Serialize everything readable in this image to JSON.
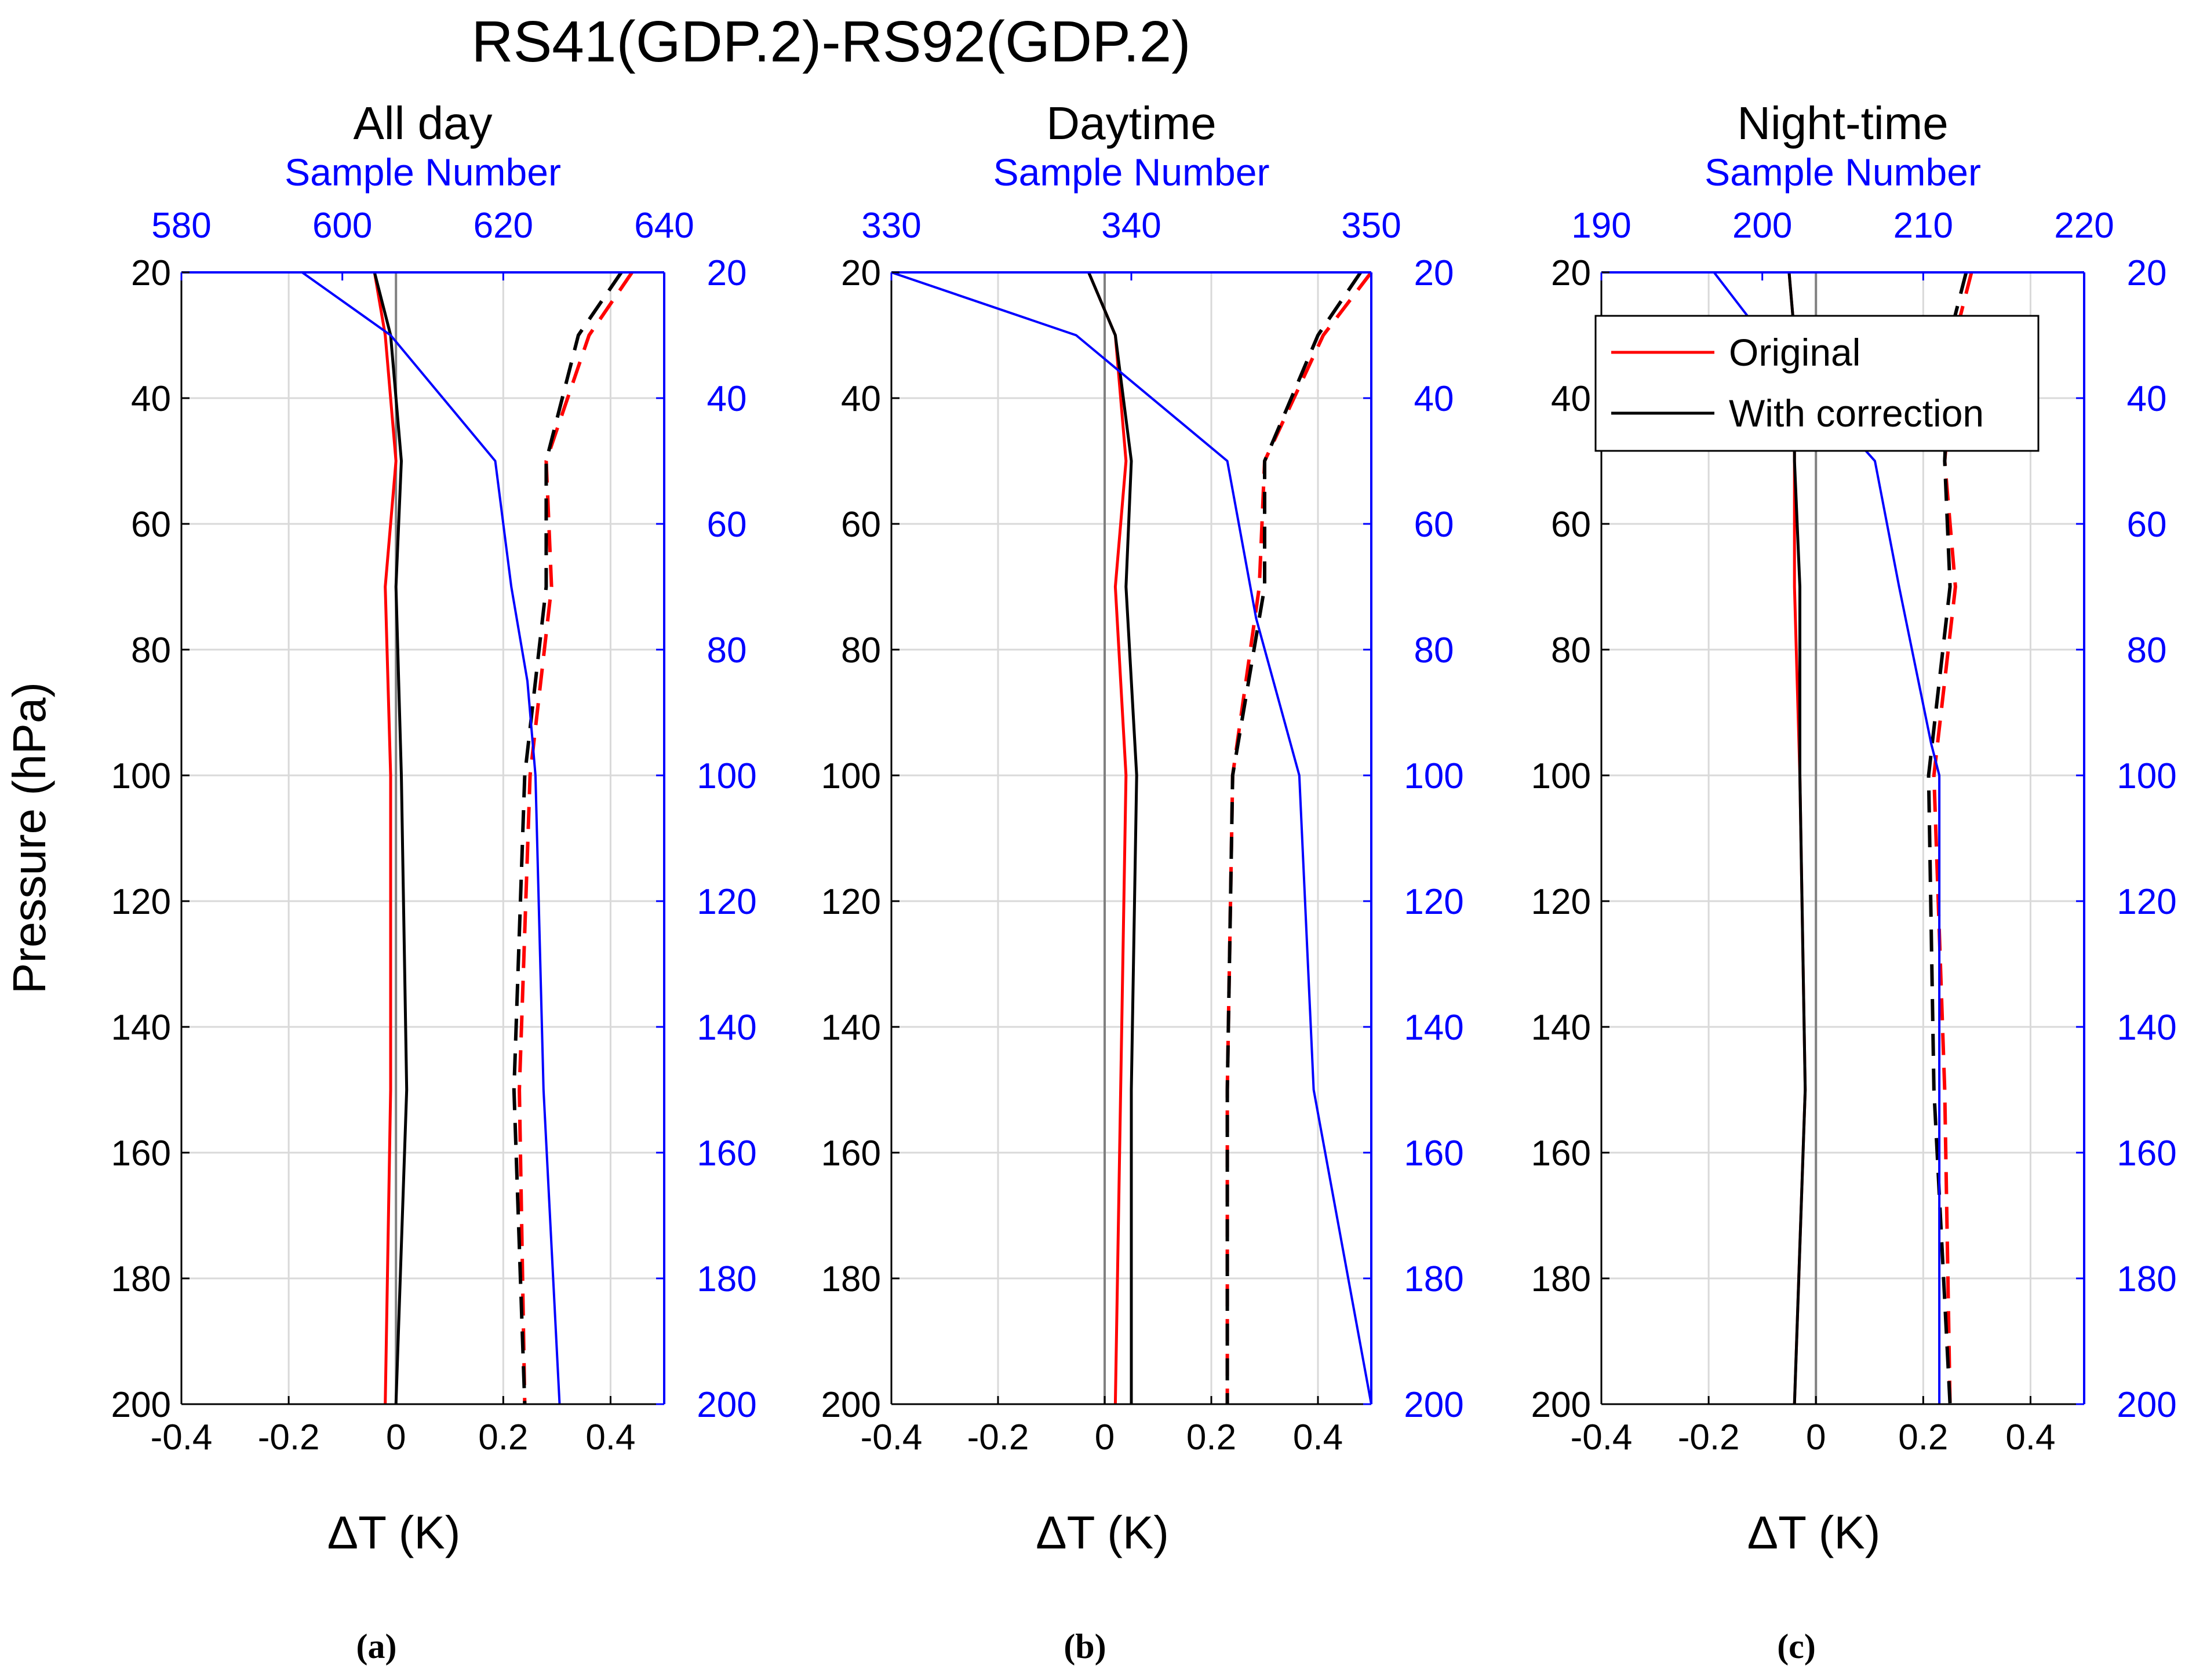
{
  "figure": {
    "title": "RS41(GDP.2)-RS92(GDP.2)",
    "colors": {
      "original": "#ff0000",
      "corrected": "#000000",
      "samples": "#0000ff",
      "grid": "#d9d9d9",
      "zero": "#808080"
    }
  },
  "legend": {
    "panel": "c",
    "entries": [
      {
        "label": "Original",
        "color": "#ff0000"
      },
      {
        "label": "With correction",
        "color": "#000000"
      }
    ]
  },
  "chart_data": [
    {
      "type": "line",
      "panel": "a",
      "title": "All day",
      "caption": "(a)",
      "xlabel": "ΔT (K)",
      "ylabel": "Pressure (hPa)",
      "top_xlabel": "Sample Number",
      "right_ylabel": "",
      "xlim": [
        -0.4,
        0.5
      ],
      "xticks": [
        -0.4,
        -0.2,
        0,
        0.2,
        0.4
      ],
      "xtick_labels": [
        "-0.4",
        "-0.2",
        "0",
        "0.2",
        "0.4"
      ],
      "ylim": [
        20,
        200
      ],
      "y_reversed": true,
      "yticks": [
        20,
        40,
        60,
        80,
        100,
        120,
        140,
        160,
        180,
        200
      ],
      "ytick_labels": [
        "20",
        "40",
        "60",
        "80",
        "100",
        "120",
        "140",
        "160",
        "180",
        "200"
      ],
      "top_xlim": [
        580,
        640
      ],
      "top_xticks": [
        580,
        600,
        620,
        640
      ],
      "top_xtick_labels": [
        "580",
        "600",
        "620",
        "640"
      ],
      "grid": true,
      "pressure": [
        20,
        30,
        50,
        70,
        100,
        150,
        200
      ],
      "series": [
        {
          "name": "Original",
          "style": "solid",
          "color": "#ff0000",
          "values": [
            -0.04,
            -0.02,
            0.0,
            -0.02,
            -0.01,
            -0.01,
            -0.02
          ]
        },
        {
          "name": "With correction",
          "style": "solid",
          "color": "#000000",
          "values": [
            -0.04,
            -0.01,
            0.01,
            0.0,
            0.01,
            0.02,
            0.0
          ]
        },
        {
          "name": "Original (dashed)",
          "style": "dashed",
          "color": "#ff0000",
          "values": [
            0.44,
            0.36,
            0.28,
            0.29,
            0.25,
            0.23,
            0.24
          ]
        },
        {
          "name": "With correction (dashed)",
          "style": "dashed",
          "color": "#000000",
          "values": [
            0.42,
            0.34,
            0.28,
            0.28,
            0.24,
            0.22,
            0.24
          ]
        }
      ],
      "sample_series": {
        "name": "Sample Number",
        "color": "#0000ff",
        "pressure": [
          20,
          30,
          50,
          70,
          85,
          100,
          150,
          200
        ],
        "values": [
          595,
          606,
          619,
          621,
          623,
          624,
          625,
          627
        ]
      }
    },
    {
      "type": "line",
      "panel": "b",
      "title": "Daytime",
      "caption": "(b)",
      "xlabel": "ΔT (K)",
      "ylabel": "",
      "top_xlabel": "Sample Number",
      "right_ylabel": "",
      "xlim": [
        -0.4,
        0.5
      ],
      "xticks": [
        -0.4,
        -0.2,
        0,
        0.2,
        0.4
      ],
      "xtick_labels": [
        "-0.4",
        "-0.2",
        "0",
        "0.2",
        "0.4"
      ],
      "ylim": [
        20,
        200
      ],
      "y_reversed": true,
      "yticks": [
        20,
        40,
        60,
        80,
        100,
        120,
        140,
        160,
        180,
        200
      ],
      "ytick_labels": [
        "20",
        "40",
        "60",
        "80",
        "100",
        "120",
        "140",
        "160",
        "180",
        "200"
      ],
      "top_xlim": [
        330,
        350
      ],
      "top_xticks": [
        330,
        340,
        350
      ],
      "top_xtick_labels": [
        "330",
        "340",
        "350"
      ],
      "grid": true,
      "pressure": [
        20,
        30,
        50,
        70,
        100,
        150,
        200
      ],
      "series": [
        {
          "name": "Original",
          "style": "solid",
          "color": "#ff0000",
          "values": [
            -0.03,
            0.02,
            0.04,
            0.02,
            0.04,
            0.03,
            0.02
          ]
        },
        {
          "name": "With correction",
          "style": "solid",
          "color": "#000000",
          "values": [
            -0.03,
            0.02,
            0.05,
            0.04,
            0.06,
            0.05,
            0.05
          ]
        },
        {
          "name": "Original (dashed)",
          "style": "dashed",
          "color": "#ff0000",
          "values": [
            0.5,
            0.41,
            0.3,
            0.29,
            0.24,
            0.23,
            0.23
          ]
        },
        {
          "name": "With correction (dashed)",
          "style": "dashed",
          "color": "#000000",
          "values": [
            0.48,
            0.4,
            0.3,
            0.3,
            0.24,
            0.23,
            0.23
          ]
        }
      ],
      "sample_series": {
        "name": "Sample Number",
        "color": "#0000ff",
        "pressure": [
          20,
          30,
          50,
          75,
          100,
          150,
          200
        ],
        "values": [
          330,
          337.7,
          344,
          345.2,
          347,
          347.6,
          350
        ]
      }
    },
    {
      "type": "line",
      "panel": "c",
      "title": "Night-time",
      "caption": "(c)",
      "xlabel": "ΔT (K)",
      "ylabel": "",
      "top_xlabel": "Sample Number",
      "right_ylabel": "",
      "xlim": [
        -0.4,
        0.5
      ],
      "xticks": [
        -0.4,
        -0.2,
        0,
        0.2,
        0.4
      ],
      "xtick_labels": [
        "-0.4",
        "-0.2",
        "0",
        "0.2",
        "0.4"
      ],
      "ylim": [
        20,
        200
      ],
      "y_reversed": true,
      "yticks": [
        20,
        40,
        60,
        80,
        100,
        120,
        140,
        160,
        180,
        200
      ],
      "ytick_labels": [
        "20",
        "40",
        "60",
        "80",
        "100",
        "120",
        "140",
        "160",
        "180",
        "200"
      ],
      "top_xlim": [
        190,
        220
      ],
      "top_xticks": [
        190,
        200,
        210,
        220
      ],
      "top_xtick_labels": [
        "190",
        "200",
        "210",
        "220"
      ],
      "grid": true,
      "pressure": [
        20,
        30,
        50,
        70,
        100,
        150,
        200
      ],
      "series": [
        {
          "name": "Original",
          "style": "solid",
          "color": "#ff0000",
          "values": [
            -0.05,
            -0.04,
            -0.04,
            -0.04,
            -0.03,
            -0.02,
            -0.04
          ]
        },
        {
          "name": "With correction",
          "style": "solid",
          "color": "#000000",
          "values": [
            -0.05,
            -0.04,
            -0.04,
            -0.03,
            -0.03,
            -0.02,
            -0.04
          ]
        },
        {
          "name": "Original (dashed)",
          "style": "dashed",
          "color": "#ff0000",
          "values": [
            0.29,
            0.26,
            0.24,
            0.26,
            0.22,
            0.24,
            0.25
          ]
        },
        {
          "name": "With correction (dashed)",
          "style": "dashed",
          "color": "#000000",
          "values": [
            0.28,
            0.25,
            0.24,
            0.25,
            0.21,
            0.22,
            0.25
          ]
        }
      ],
      "sample_series": {
        "name": "Sample Number",
        "color": "#0000ff",
        "pressure": [
          20,
          30,
          40,
          50,
          70,
          95,
          100,
          200
        ],
        "values": [
          197,
          200,
          203.5,
          207,
          208.5,
          210.5,
          211,
          211
        ]
      }
    }
  ]
}
